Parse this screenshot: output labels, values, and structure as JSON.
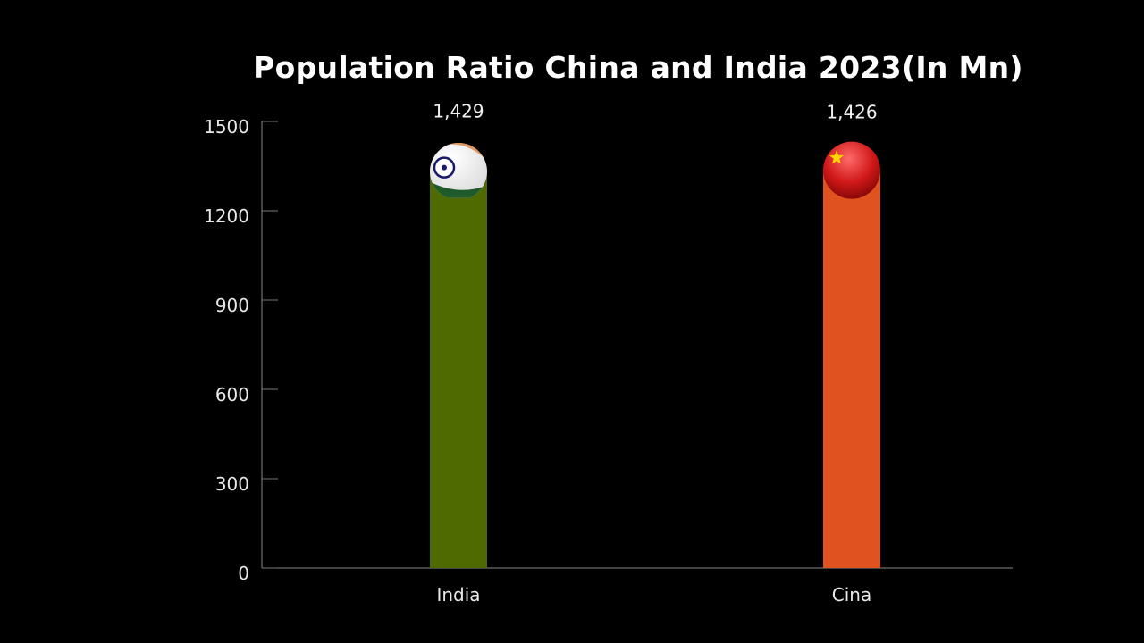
{
  "chart_data": {
    "type": "bar",
    "title": "Population Ratio China and India 2023(In Mn)",
    "categories": [
      "India",
      "Cina"
    ],
    "values": [
      1429,
      1426
    ],
    "data_labels": [
      "1,429",
      "1,426"
    ],
    "colors": [
      "#4e6a00",
      "#e0521f"
    ],
    "icons": [
      "india-flag-ball-icon",
      "china-flag-ball-icon"
    ],
    "xlabel": "",
    "ylabel": "",
    "ylim": [
      0,
      1500
    ],
    "yticks": [
      0,
      300,
      600,
      900,
      1200,
      1500
    ],
    "grid": false,
    "background": "#000000"
  }
}
